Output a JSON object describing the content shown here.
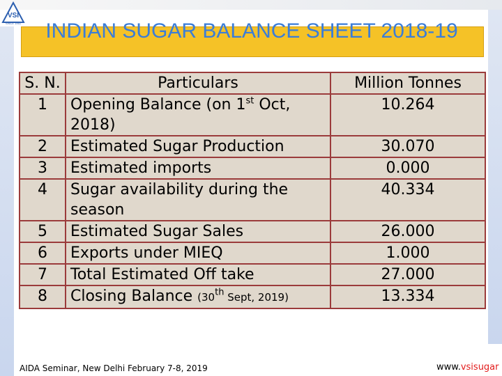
{
  "slide": {
    "title": "INDIAN SUGAR BALANCE SHEET 2018-19",
    "logo_text": "VSI",
    "logo_subtext": "SINCE 1951"
  },
  "table": {
    "headers": {
      "sn": "S. N.",
      "particulars": "Particulars",
      "unit": "Million Tonnes"
    },
    "rows": [
      {
        "sn": "1",
        "p_pre": "Opening Balance (on 1",
        "p_sup": "st",
        "p_post": " Oct, 2018)",
        "value": "10.264"
      },
      {
        "sn": "2",
        "p_pre": "Estimated Sugar Production",
        "value": "30.070"
      },
      {
        "sn": "3",
        "p_pre": "Estimated imports",
        "value": "0.000"
      },
      {
        "sn": "4",
        "p_pre": "Sugar availability during the season",
        "value": "40.334"
      },
      {
        "sn": "5",
        "p_pre": "Estimated Sugar Sales",
        "value": "26.000"
      },
      {
        "sn": "6",
        "p_pre": "Exports under MIEQ",
        "value": "1.000"
      },
      {
        "sn": "7",
        "p_pre": "Total Estimated Off take",
        "value": "27.000"
      },
      {
        "sn": "8",
        "p_pre": "Closing Balance ",
        "p_small_pre": "(30",
        "p_sup": "th",
        "p_small_post": " Sept, 2019)",
        "value": "13.334"
      }
    ]
  },
  "footer": {
    "left": "AIDA Seminar, New Delhi February 7-8, 2019",
    "right_prefix": "www.",
    "right_brand": "vsisugar"
  },
  "colors": {
    "title_text": "#3b7dd8",
    "title_box": "#f5c227",
    "table_bg": "#e0d8cc",
    "table_border": "#9b3b3b",
    "footer_brand": "#e21b1b"
  }
}
